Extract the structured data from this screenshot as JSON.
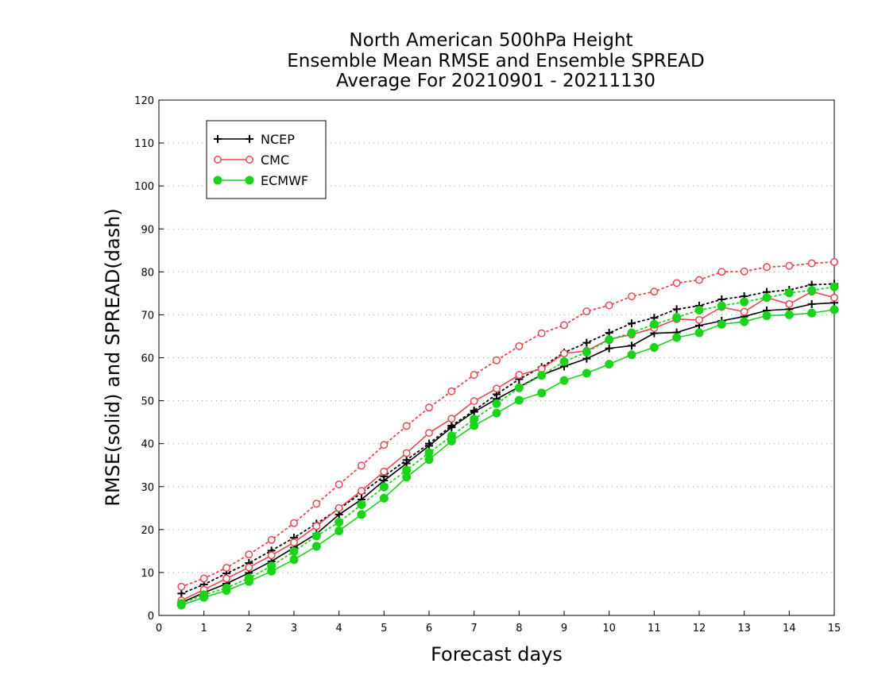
{
  "chart_data": {
    "type": "line",
    "title_lines": [
      "North American 500hPa Height",
      "Ensemble Mean RMSE and Ensemble SPREAD",
      "Average For 20210901 - 20211130"
    ],
    "xlabel": "Forecast days",
    "ylabel": "RMSE(solid) and SPREAD(dash)",
    "xlim": [
      0,
      15
    ],
    "ylim": [
      0,
      120
    ],
    "x_ticks": [
      "0",
      "1",
      "2",
      "3",
      "4",
      "5",
      "6",
      "7",
      "8",
      "9",
      "10",
      "11",
      "12",
      "13",
      "14",
      "15"
    ],
    "y_ticks": [
      "0",
      "10",
      "20",
      "30",
      "40",
      "50",
      "60",
      "70",
      "80",
      "90",
      "100",
      "110",
      "120"
    ],
    "grid": "horizontal dotted",
    "legend_position": "top-left",
    "x": [
      0.5,
      1,
      1.5,
      2,
      2.5,
      3,
      3.5,
      4,
      4.5,
      5,
      5.5,
      6,
      6.5,
      7,
      7.5,
      8,
      8.5,
      9,
      9.5,
      10,
      10.5,
      11,
      11.5,
      12,
      12.5,
      13,
      13.5,
      14,
      14.5,
      15
    ],
    "series": [
      {
        "name": "NCEP",
        "color": "#000000",
        "marker": "plus",
        "rmse": [
          3.0,
          5.3,
          7.4,
          9.9,
          12.6,
          15.8,
          19.0,
          23.5,
          27.0,
          31.4,
          35.4,
          39.5,
          43.8,
          47.4,
          50.4,
          53.2,
          56.0,
          58.0,
          59.8,
          62.2,
          62.8,
          65.7,
          65.9,
          67.5,
          68.6,
          69.6,
          71.0,
          71.3,
          72.5,
          72.8
        ],
        "spread": [
          5.1,
          7.2,
          9.8,
          12.2,
          15.1,
          18.1,
          21.4,
          24.8,
          28.5,
          32.4,
          36.2,
          40.0,
          44.2,
          47.7,
          51.5,
          55.0,
          57.8,
          61.2,
          63.5,
          65.8,
          68.0,
          69.3,
          71.3,
          72.1,
          73.6,
          74.3,
          75.3,
          75.8,
          77.0,
          77.2
        ]
      },
      {
        "name": "CMC",
        "color": "#e8454f",
        "marker": "open-circle",
        "rmse": [
          3.5,
          6.0,
          8.6,
          11.2,
          14.0,
          17.0,
          20.8,
          25.0,
          29.0,
          33.5,
          37.8,
          42.5,
          45.8,
          49.9,
          52.8,
          56.0,
          57.4,
          61.0,
          61.6,
          64.3,
          65.4,
          66.9,
          69.0,
          68.8,
          71.8,
          70.7,
          74.0,
          72.5,
          75.4,
          74.0
        ],
        "spread": [
          6.7,
          8.6,
          11.1,
          14.2,
          17.6,
          21.5,
          26.0,
          30.5,
          34.9,
          39.7,
          44.1,
          48.4,
          52.2,
          56.0,
          59.4,
          62.7,
          65.7,
          67.6,
          70.8,
          72.2,
          74.3,
          75.4,
          77.4,
          78.1,
          80.0,
          80.1,
          81.1,
          81.4,
          82.0,
          82.3
        ]
      },
      {
        "name": "ECMWF",
        "color": "#19d419",
        "marker": "filled-circle",
        "rmse": [
          2.4,
          4.2,
          5.8,
          7.9,
          10.3,
          13.0,
          16.1,
          19.7,
          23.5,
          27.3,
          32.2,
          36.3,
          40.6,
          44.2,
          47.1,
          50.1,
          51.8,
          54.7,
          56.4,
          58.5,
          60.7,
          62.4,
          64.7,
          65.8,
          67.8,
          68.4,
          69.8,
          70.0,
          70.4,
          71.2
        ],
        "spread": [
          2.8,
          4.8,
          6.4,
          8.7,
          11.5,
          14.9,
          18.5,
          21.7,
          25.8,
          29.9,
          33.8,
          37.9,
          41.8,
          45.7,
          49.3,
          53.0,
          55.9,
          59.1,
          61.3,
          64.2,
          65.8,
          67.8,
          69.4,
          71.1,
          72.1,
          73.0,
          74.0,
          75.1,
          75.7,
          76.5
        ]
      }
    ]
  }
}
